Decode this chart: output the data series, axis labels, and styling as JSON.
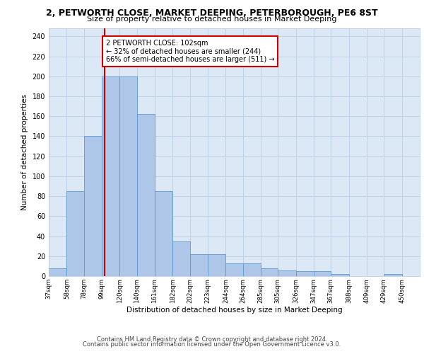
{
  "title": "2, PETWORTH CLOSE, MARKET DEEPING, PETERBOROUGH, PE6 8ST",
  "subtitle": "Size of property relative to detached houses in Market Deeping",
  "xlabel": "Distribution of detached houses by size in Market Deeping",
  "ylabel": "Number of detached properties",
  "bar_left_edges": [
    37,
    58,
    78,
    99,
    120,
    140,
    161,
    182,
    202,
    223,
    244,
    264,
    285,
    305,
    326,
    347,
    367,
    388,
    409,
    429
  ],
  "bar_widths": [
    21,
    20,
    21,
    21,
    20,
    21,
    21,
    20,
    21,
    21,
    20,
    21,
    20,
    21,
    21,
    20,
    21,
    21,
    20,
    21
  ],
  "bar_heights": [
    8,
    85,
    140,
    200,
    200,
    162,
    85,
    35,
    22,
    22,
    13,
    13,
    8,
    6,
    5,
    5,
    2,
    0,
    0,
    2
  ],
  "bar_color": "#aec6e8",
  "bar_edge_color": "#5b9bd5",
  "tick_labels": [
    "37sqm",
    "58sqm",
    "78sqm",
    "99sqm",
    "120sqm",
    "140sqm",
    "161sqm",
    "182sqm",
    "202sqm",
    "223sqm",
    "244sqm",
    "264sqm",
    "285sqm",
    "305sqm",
    "326sqm",
    "347sqm",
    "367sqm",
    "388sqm",
    "409sqm",
    "429sqm",
    "450sqm"
  ],
  "tick_positions": [
    37,
    58,
    78,
    99,
    120,
    140,
    161,
    182,
    202,
    223,
    244,
    264,
    285,
    305,
    326,
    347,
    367,
    388,
    409,
    429,
    450
  ],
  "ylim": [
    0,
    248
  ],
  "yticks": [
    0,
    20,
    40,
    60,
    80,
    100,
    120,
    140,
    160,
    180,
    200,
    220,
    240
  ],
  "property_line_x": 102,
  "annotation_text": "2 PETWORTH CLOSE: 102sqm\n← 32% of detached houses are smaller (244)\n66% of semi-detached houses are larger (511) →",
  "annotation_box_color": "#ffffff",
  "annotation_box_edge": "#cc0000",
  "red_line_color": "#cc0000",
  "background_color": "#dce8f5",
  "footer_line1": "Contains HM Land Registry data © Crown copyright and database right 2024.",
  "footer_line2": "Contains public sector information licensed under the Open Government Licence v3.0."
}
